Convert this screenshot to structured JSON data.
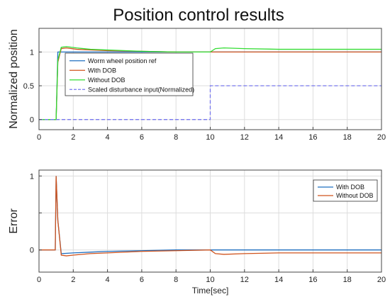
{
  "title": "Position control results",
  "colors": {
    "ref": "#1f6fc0",
    "with_dob": "#d0541e",
    "without_dob": "#33dd33",
    "disturbance": "#7777ee",
    "err_with": "#1f6fc0",
    "err_without": "#d0541e",
    "grid": "#dddddd",
    "axes": "#444444"
  },
  "chart_data": [
    {
      "type": "line",
      "title": "Position control results",
      "xlabel": "",
      "ylabel": "Normalized position",
      "xlim": [
        0,
        20
      ],
      "ylim": [
        -0.15,
        1.35
      ],
      "xticks": [
        0,
        2,
        4,
        6,
        8,
        10,
        12,
        14,
        16,
        18,
        20
      ],
      "yticks": [
        0,
        0.5,
        1
      ],
      "ytick_labels": [
        "0",
        "0.5",
        "1"
      ],
      "grid": true,
      "legend_position": "upper-left-inside",
      "series": [
        {
          "name": "Worm wheel position ref",
          "color_key": "ref",
          "dash": false,
          "x": [
            0,
            1,
            1.1,
            20
          ],
          "y": [
            0,
            0,
            1,
            1
          ]
        },
        {
          "name": "With DOB",
          "color_key": "with_dob",
          "dash": false,
          "x": [
            0,
            1,
            1.1,
            1.3,
            1.6,
            2.2,
            3,
            4,
            6,
            8,
            10,
            11,
            14,
            20
          ],
          "y": [
            0,
            0,
            0.85,
            1.05,
            1.06,
            1.04,
            1.03,
            1.02,
            1.01,
            1.0,
            1.0,
            1.0,
            1.0,
            1.0
          ]
        },
        {
          "name": "Without DOB",
          "color_key": "without_dob",
          "dash": false,
          "x": [
            0,
            1,
            1.1,
            1.3,
            1.6,
            2.2,
            3,
            4,
            6,
            8,
            10,
            10.3,
            10.8,
            12,
            14,
            16,
            20
          ],
          "y": [
            0,
            0,
            0.88,
            1.07,
            1.08,
            1.06,
            1.04,
            1.03,
            1.01,
            1.0,
            1.0,
            1.05,
            1.06,
            1.05,
            1.04,
            1.04,
            1.04
          ]
        },
        {
          "name": "Scaled disturbance input(Normalized)",
          "color_key": "disturbance",
          "dash": true,
          "x": [
            0,
            10,
            10,
            20
          ],
          "y": [
            0,
            0,
            0.5,
            0.5
          ]
        }
      ]
    },
    {
      "type": "line",
      "title": "",
      "xlabel": "Time[sec]",
      "ylabel": "Error",
      "xlim": [
        0,
        20
      ],
      "ylim": [
        -0.3,
        1.08
      ],
      "xticks": [
        0,
        2,
        4,
        6,
        8,
        10,
        12,
        14,
        16,
        18,
        20
      ],
      "yticks": [
        0,
        0.5,
        1
      ],
      "ytick_labels": [
        "0",
        "",
        "1"
      ],
      "grid": true,
      "legend_position": "upper-right-inside",
      "series": [
        {
          "name": "With DOB",
          "color_key": "err_with",
          "dash": false,
          "x": [
            0,
            0.95,
            1.0,
            1.1,
            1.3,
            2,
            3,
            4,
            6,
            8,
            10,
            20
          ],
          "y": [
            0,
            0,
            1.0,
            0.4,
            -0.05,
            -0.04,
            -0.03,
            -0.02,
            -0.01,
            0,
            0,
            0
          ]
        },
        {
          "name": "Without DOB",
          "color_key": "err_without",
          "dash": false,
          "x": [
            0,
            0.95,
            1.0,
            1.1,
            1.3,
            1.6,
            2,
            3,
            4,
            6,
            8,
            10,
            10.3,
            10.8,
            12,
            14,
            16,
            20
          ],
          "y": [
            0,
            0,
            1.0,
            0.4,
            -0.07,
            -0.08,
            -0.07,
            -0.05,
            -0.04,
            -0.02,
            -0.01,
            0,
            -0.05,
            -0.06,
            -0.05,
            -0.04,
            -0.04,
            -0.04
          ]
        }
      ]
    }
  ]
}
